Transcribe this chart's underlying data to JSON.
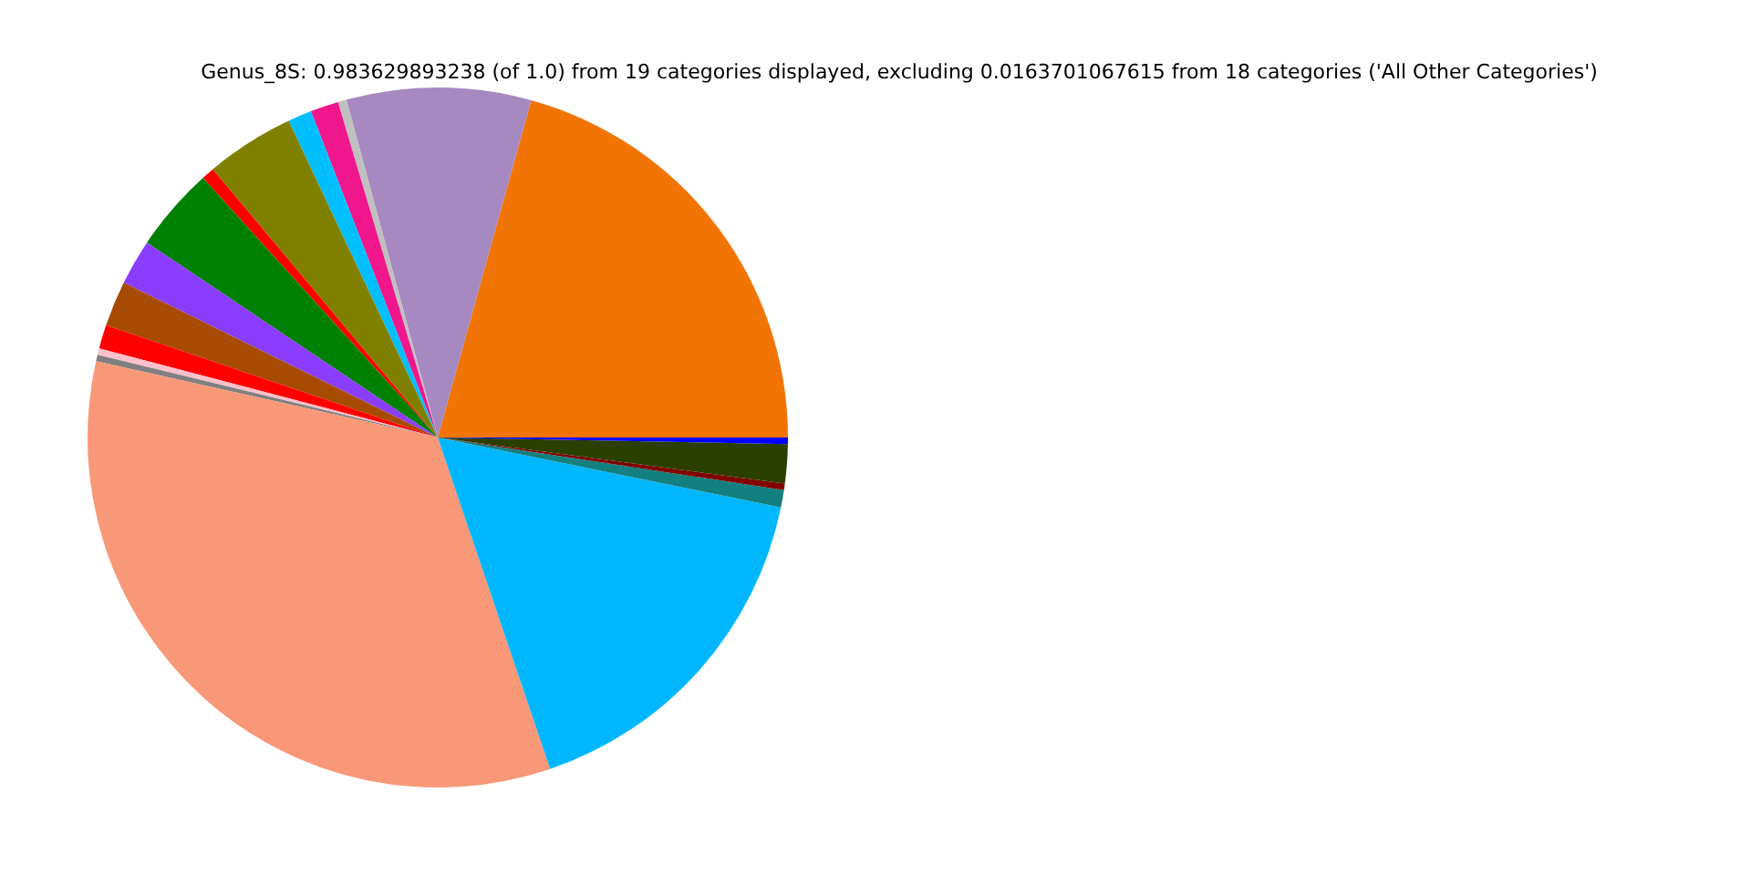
{
  "chart_data": {
    "type": "pie",
    "title": "Genus_8S: 0.983629893238 (of 1.0) from 19 categories displayed, excluding 0.0163701067615 from 18 categories ('All Other Categories')",
    "categories": [
      null,
      null,
      null,
      null,
      null,
      null,
      null,
      null,
      null,
      null,
      null,
      null,
      null,
      null,
      null,
      null,
      null,
      null,
      null
    ],
    "values": [
      20.7,
      8.5,
      0.4,
      1.3,
      1.1,
      4.1,
      0.6,
      3.9,
      2.1,
      2.1,
      1.1,
      0.3,
      0.3,
      33.7,
      16.6,
      0.8,
      0.3,
      1.8,
      0.3
    ],
    "colors": [
      "#f27405",
      "#a589c0",
      "#c0c0c0",
      "#f0168c",
      "#00bfff",
      "#808000",
      "#ff0000",
      "#008000",
      "#8b3dff",
      "#a64b00",
      "#ff0000",
      "#ffc0cb",
      "#808080",
      "#f89878",
      "#00b7ff",
      "#138080",
      "#800000",
      "#2a3f00",
      "#0000ff"
    ],
    "legend": false
  }
}
